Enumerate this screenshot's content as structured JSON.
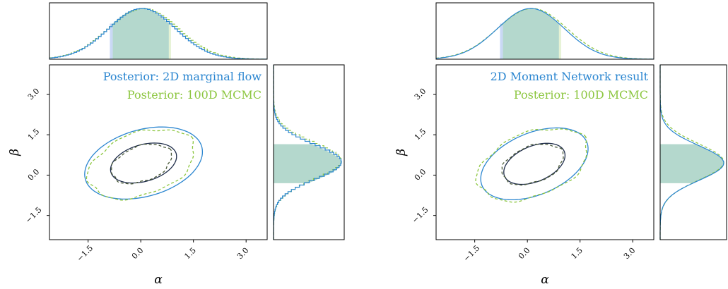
{
  "colors": {
    "flow": "#2b86d0",
    "mcmc": "#8cc63f",
    "contour_dark": "#1f2d4a",
    "fill_blue": "#c9d8f5",
    "fill_teal": "#b4d8cd"
  },
  "chart_data": [
    {
      "type": "contour",
      "title": "",
      "xlabel": "α",
      "ylabel": "β",
      "xlim": [
        -2.6,
        3.6
      ],
      "ylim": [
        -2.4,
        4.1
      ],
      "xticks": [
        -1.5,
        0.0,
        1.5,
        3.0
      ],
      "yticks": [
        -1.5,
        0.0,
        1.5,
        3.0
      ],
      "xtick_labels": [
        "−1.5",
        "0.0",
        "1.5",
        "3.0"
      ],
      "ytick_labels": [
        "−1.5",
        "0.0",
        "1.5",
        "3.0"
      ],
      "legend": [
        "Posterior: 2D marginal flow",
        "Posterior: 100D MCMC"
      ],
      "legend_placement": "top-right",
      "series": [
        {
          "name": "Posterior: 2D marginal flow",
          "color_key": "flow",
          "dashed": false,
          "contours": [
            {
              "center": [
                0.08,
                0.45
              ],
              "rx": 1.78,
              "ry": 1.2,
              "angle_deg": 27
            },
            {
              "center": [
                0.08,
                0.45
              ],
              "rx": 1.0,
              "ry": 0.66,
              "angle_deg": 27
            }
          ]
        },
        {
          "name": "Posterior: 100D MCMC",
          "color_key": "mcmc",
          "dashed": true,
          "contours": [
            {
              "center": [
                0.02,
                0.42
              ],
              "rx": 1.66,
              "ry": 1.1,
              "angle_deg": 33
            },
            {
              "center": [
                0.02,
                0.42
              ],
              "rx": 0.94,
              "ry": 0.62,
              "angle_deg": 33
            }
          ]
        }
      ],
      "marginal_top": {
        "mean": 0.0,
        "sd": 0.95,
        "interval": [
          -0.8,
          0.8
        ],
        "style": "step"
      },
      "marginal_right": {
        "mean": 0.45,
        "sd": 0.65,
        "interval": [
          -0.3,
          1.15
        ],
        "style": "step"
      }
    },
    {
      "type": "contour",
      "title": "",
      "xlabel": "α",
      "ylabel": "β",
      "xlim": [
        -2.6,
        3.6
      ],
      "ylim": [
        -2.4,
        4.1
      ],
      "xticks": [
        -1.5,
        0.0,
        1.5,
        3.0
      ],
      "yticks": [
        -1.5,
        0.0,
        1.5,
        3.0
      ],
      "xtick_labels": [
        "−1.5",
        "0.0",
        "1.5",
        "3.0"
      ],
      "ytick_labels": [
        "−1.5",
        "0.0",
        "1.5",
        "3.0"
      ],
      "legend": [
        "2D Moment Network result",
        "Posterior: 100D MCMC"
      ],
      "legend_placement": "top-right",
      "series": [
        {
          "name": "2D Moment Network result",
          "color_key": "flow",
          "dashed": false,
          "contours": [
            {
              "center": [
                0.2,
                0.42
              ],
              "rx": 1.72,
              "ry": 1.08,
              "angle_deg": 36
            },
            {
              "center": [
                0.2,
                0.42
              ],
              "rx": 0.98,
              "ry": 0.62,
              "angle_deg": 36
            }
          ]
        },
        {
          "name": "Posterior: 100D MCMC",
          "color_key": "mcmc",
          "dashed": true,
          "contours": [
            {
              "center": [
                0.15,
                0.4
              ],
              "rx": 1.74,
              "ry": 1.12,
              "angle_deg": 34
            },
            {
              "center": [
                0.15,
                0.4
              ],
              "rx": 0.96,
              "ry": 0.64,
              "angle_deg": 34
            }
          ]
        }
      ],
      "marginal_top": {
        "mean": 0.1,
        "sd": 0.95,
        "interval": [
          -0.7,
          0.9
        ],
        "style": "smooth"
      },
      "marginal_right": {
        "mean": 0.45,
        "sd": 0.65,
        "interval": [
          -0.3,
          1.15
        ],
        "style": "smooth"
      }
    }
  ]
}
